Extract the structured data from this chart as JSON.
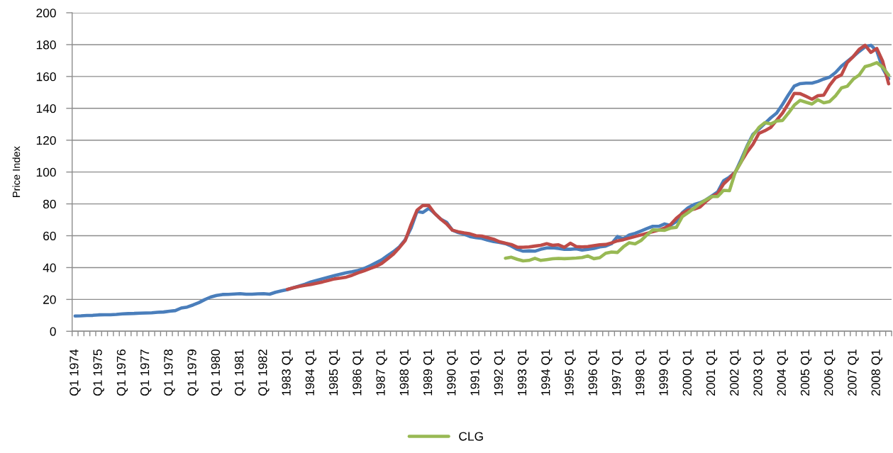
{
  "chart_data": {
    "type": "line",
    "ylabel": "Price Index",
    "categories": [
      "Q1 1974",
      null,
      null,
      null,
      "Q1 1975",
      null,
      null,
      null,
      "Q1 1976",
      null,
      null,
      null,
      "Q1 1977",
      null,
      null,
      null,
      "Q1 1978",
      null,
      null,
      null,
      "Q1 1979",
      null,
      null,
      null,
      "Q1 1980",
      null,
      null,
      null,
      "Q1 1981",
      null,
      null,
      null,
      "Q1 1982",
      null,
      null,
      null,
      "1983 Q1",
      null,
      null,
      null,
      "1984 Q1",
      null,
      null,
      null,
      "1985 Q1",
      null,
      null,
      null,
      "1986 Q1",
      null,
      null,
      null,
      "1987 Q1",
      null,
      null,
      null,
      "1988 Q1",
      null,
      null,
      null,
      "1989 Q1",
      null,
      null,
      null,
      "1990 Q1",
      null,
      null,
      null,
      "1991 Q1",
      null,
      null,
      null,
      "1992 Q1",
      null,
      null,
      null,
      "1993 Q1",
      null,
      null,
      null,
      "1994 Q1",
      null,
      null,
      null,
      "1995 Q1",
      null,
      null,
      null,
      "1996 Q1",
      null,
      null,
      null,
      "1997 Q1",
      null,
      null,
      null,
      "1998 Q1",
      null,
      null,
      null,
      "1999 Q1",
      null,
      null,
      null,
      "2000 Q1",
      null,
      null,
      null,
      "2001 Q1",
      null,
      null,
      null,
      "2002 Q1",
      null,
      null,
      null,
      "2003 Q1",
      null,
      null,
      null,
      "2004 Q1",
      null,
      null,
      null,
      "2005 Q1",
      null,
      null,
      null,
      "2006 Q1",
      null,
      null,
      null,
      "2007 Q1",
      null,
      null,
      null,
      "2008 Q1",
      null,
      null
    ],
    "series": [
      {
        "color": "#4a7ebb",
        "values": [
          9.6,
          9.7,
          9.9,
          10.0,
          10.3,
          10.4,
          10.4,
          10.6,
          10.9,
          11.1,
          11.2,
          11.4,
          11.5,
          11.6,
          11.9,
          12.1,
          12.6,
          13.0,
          14.6,
          15.2,
          16.5,
          18.0,
          19.9,
          21.5,
          22.5,
          23.1,
          23.2,
          23.4,
          23.6,
          23.3,
          23.3,
          23.5,
          23.6,
          23.3,
          24.5,
          25.4,
          26.2,
          27.3,
          28.4,
          29.6,
          31.0,
          32.0,
          33.0,
          34.0,
          35.0,
          35.9,
          36.7,
          37.4,
          38.2,
          39.4,
          41.1,
          42.9,
          44.8,
          47.5,
          50.0,
          53.0,
          57.5,
          64.9,
          75.3,
          74.6,
          77.2,
          74.0,
          70.5,
          68.5,
          63.5,
          62.0,
          61.0,
          59.5,
          58.8,
          58.3,
          57.2,
          56.3,
          55.8,
          55.0,
          53.5,
          51.5,
          50.3,
          50.5,
          50.3,
          51.5,
          52.3,
          52.5,
          52.0,
          51.5,
          51.5,
          51.8,
          51.0,
          51.5,
          52.0,
          53.0,
          53.5,
          55.0,
          59.5,
          58.0,
          60.5,
          61.5,
          63.0,
          64.5,
          65.9,
          65.9,
          67.4,
          66.5,
          69.0,
          74.5,
          77.6,
          79.6,
          80.7,
          82.5,
          85.0,
          87.5,
          94.5,
          96.8,
          100.0,
          108.0,
          116.5,
          123.7,
          127.0,
          130.5,
          134.0,
          137.0,
          142.5,
          148.5,
          154.0,
          155.5,
          155.8,
          155.8,
          156.9,
          158.4,
          159.6,
          162.5,
          166.5,
          169.5,
          172.5,
          175.7,
          178.6,
          179.6,
          176.0,
          165.0,
          158.5
        ]
      },
      {
        "color": "#be4b48",
        "values": [
          null,
          null,
          null,
          null,
          null,
          null,
          null,
          null,
          null,
          null,
          null,
          null,
          null,
          null,
          null,
          null,
          null,
          null,
          null,
          null,
          null,
          null,
          null,
          null,
          null,
          null,
          null,
          null,
          null,
          null,
          null,
          null,
          null,
          null,
          null,
          null,
          26.3,
          27.3,
          28.2,
          28.8,
          29.4,
          30.2,
          31.0,
          32.0,
          32.9,
          33.4,
          34.0,
          35.2,
          36.7,
          37.9,
          39.4,
          40.7,
          42.6,
          45.5,
          48.5,
          52.5,
          57.0,
          67.1,
          76.0,
          79.0,
          79.0,
          74.0,
          70.5,
          67.5,
          63.5,
          62.5,
          61.8,
          61.2,
          60.0,
          59.8,
          58.8,
          57.8,
          56.2,
          55.3,
          54.5,
          52.8,
          52.8,
          53.0,
          53.5,
          54.0,
          55.0,
          54.0,
          54.3,
          52.7,
          55.3,
          53.2,
          53.0,
          53.2,
          53.8,
          54.3,
          54.5,
          55.5,
          56.8,
          57.5,
          58.5,
          59.5,
          60.5,
          61.5,
          62.5,
          63.5,
          64.8,
          67.0,
          71.0,
          74.0,
          76.0,
          76.7,
          78.0,
          81.5,
          84.5,
          86.5,
          92.5,
          96.0,
          100.0,
          106.5,
          112.5,
          117.5,
          124.3,
          125.9,
          128.0,
          132.5,
          137.0,
          143.0,
          149.4,
          149.2,
          147.5,
          145.7,
          147.9,
          148.3,
          154.5,
          159.2,
          161.0,
          168.8,
          172.5,
          177.0,
          179.6,
          175.1,
          177.6,
          169.5,
          155.4
        ]
      },
      {
        "name": "CLG",
        "color": "#98b954",
        "values": [
          null,
          null,
          null,
          null,
          null,
          null,
          null,
          null,
          null,
          null,
          null,
          null,
          null,
          null,
          null,
          null,
          null,
          null,
          null,
          null,
          null,
          null,
          null,
          null,
          null,
          null,
          null,
          null,
          null,
          null,
          null,
          null,
          null,
          null,
          null,
          null,
          null,
          null,
          null,
          null,
          null,
          null,
          null,
          null,
          null,
          null,
          null,
          null,
          null,
          null,
          null,
          null,
          null,
          null,
          null,
          null,
          null,
          null,
          null,
          null,
          null,
          null,
          null,
          null,
          null,
          null,
          null,
          null,
          null,
          null,
          null,
          null,
          null,
          45.9,
          46.5,
          45.2,
          44.2,
          44.5,
          45.8,
          44.5,
          45.0,
          45.5,
          45.8,
          45.6,
          45.8,
          46.0,
          46.3,
          47.3,
          45.6,
          46.2,
          49.0,
          49.8,
          49.5,
          53.0,
          55.6,
          54.9,
          57.0,
          60.5,
          63.7,
          63.6,
          63.4,
          64.8,
          65.3,
          72.0,
          74.5,
          77.3,
          80.2,
          82.5,
          84.6,
          84.6,
          88.5,
          88.3,
          100.0,
          106.5,
          116.0,
          123.0,
          128.0,
          131.0,
          130.2,
          132.0,
          132.4,
          137.0,
          142.0,
          145.0,
          143.8,
          142.7,
          145.4,
          143.5,
          144.3,
          147.9,
          152.8,
          153.9,
          158.3,
          160.9,
          166.2,
          167.2,
          168.7,
          165.8,
          160.9
        ]
      }
    ],
    "ylim": [
      0,
      200
    ],
    "yticks": [
      0,
      20,
      40,
      60,
      80,
      100,
      120,
      140,
      160,
      180,
      200
    ],
    "grid": "y",
    "legend": "bottom"
  }
}
